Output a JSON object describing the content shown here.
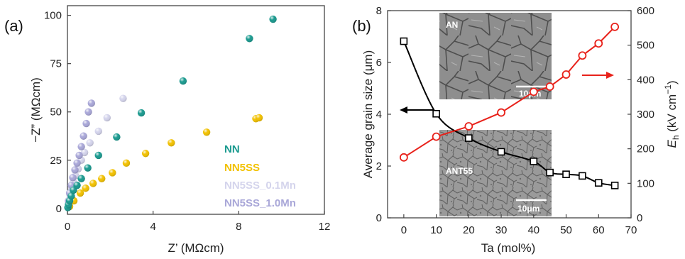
{
  "chart_data": [
    {
      "type": "scatter",
      "panel_label": "(a)",
      "xlabel": "Z’ (MΩcm)",
      "ylabel": "−Z” (MΩcm)",
      "xlim": [
        0,
        12
      ],
      "ylim": [
        -3,
        105
      ],
      "xticks": [
        "0",
        "4",
        "8",
        "12"
      ],
      "yticks": [
        "0",
        "25",
        "50",
        "75",
        "100"
      ],
      "legend_position": "bottom-right",
      "series": [
        {
          "name": "NN",
          "color": "#1a9a8f",
          "x": [
            0.02,
            0.05,
            0.1,
            0.18,
            0.28,
            0.45,
            0.65,
            0.95,
            1.45,
            2.3,
            3.45,
            5.4,
            8.5,
            9.6
          ],
          "y": [
            0.5,
            2,
            4,
            6.5,
            9.5,
            12,
            15.5,
            21,
            27.5,
            37,
            49.5,
            66,
            88,
            98
          ]
        },
        {
          "name": "NN5SS",
          "color": "#f2c100",
          "x": [
            0.1,
            0.3,
            0.6,
            0.85,
            1.2,
            1.6,
            2.1,
            2.75,
            3.65,
            4.85,
            6.5,
            8.8,
            8.95
          ],
          "y": [
            1,
            4,
            8,
            10.5,
            13,
            15.5,
            18.5,
            23.5,
            28.5,
            34,
            39.5,
            46.5,
            47
          ]
        },
        {
          "name": "NN5SS_0.1Mn",
          "color": "#d4d4ec",
          "x": [
            0.05,
            0.12,
            0.2,
            0.28,
            0.38,
            0.5,
            0.65,
            0.8,
            1.05,
            1.45,
            1.85,
            2.6
          ],
          "y": [
            3,
            7,
            10,
            13.5,
            17,
            20.5,
            25,
            29,
            34,
            40,
            47,
            57
          ]
        },
        {
          "name": "NN5SS_1.0Mn",
          "color": "#a9a7d8",
          "x": [
            0.05,
            0.1,
            0.18,
            0.25,
            0.35,
            0.45,
            0.55,
            0.65,
            0.75,
            0.88,
            0.98,
            1.12
          ],
          "y": [
            4,
            8,
            12,
            16,
            20,
            23.5,
            27.5,
            32,
            37.5,
            44,
            50,
            54.5
          ]
        }
      ]
    },
    {
      "type": "line",
      "panel_label": "(b)",
      "xlabel": "Ta (mol%)",
      "ylabel": "Average grain size (μm)",
      "ylabel_right_main": "E",
      "ylabel_right_sub": "h",
      "ylabel_right_unit": " (kV cm",
      "ylabel_right_sup": "−1",
      "ylabel_right_close": ")",
      "xlim": [
        -5,
        70
      ],
      "ylim_left": [
        0,
        8
      ],
      "ylim_right": [
        0,
        600
      ],
      "xticks": [
        "0",
        "10",
        "20",
        "30",
        "40",
        "50",
        "60",
        "70"
      ],
      "yticks_left": [
        "0",
        "2",
        "4",
        "6",
        "8"
      ],
      "yticks_right": [
        "0",
        "100",
        "200",
        "300",
        "400",
        "500",
        "600"
      ],
      "series": [
        {
          "name": "Average grain size",
          "axis": "left",
          "color": "#000000",
          "marker": "square",
          "x": [
            0,
            10,
            20,
            30,
            40,
            45,
            50,
            55,
            60,
            65
          ],
          "y": [
            6.82,
            4.02,
            3.08,
            2.55,
            2.18,
            1.75,
            1.68,
            1.62,
            1.35,
            1.25
          ]
        },
        {
          "name": "Eh",
          "axis": "right",
          "color": "#e8221b",
          "marker": "circle",
          "x": [
            0,
            10,
            20,
            30,
            40,
            45,
            50,
            55,
            60,
            65
          ],
          "y": [
            175,
            235,
            265,
            305,
            365,
            380,
            415,
            470,
            505,
            553
          ]
        }
      ],
      "insets": [
        {
          "label": "AN",
          "scale_bar": "10μm"
        },
        {
          "label": "ANT55",
          "scale_bar": "10μm"
        }
      ]
    }
  ]
}
